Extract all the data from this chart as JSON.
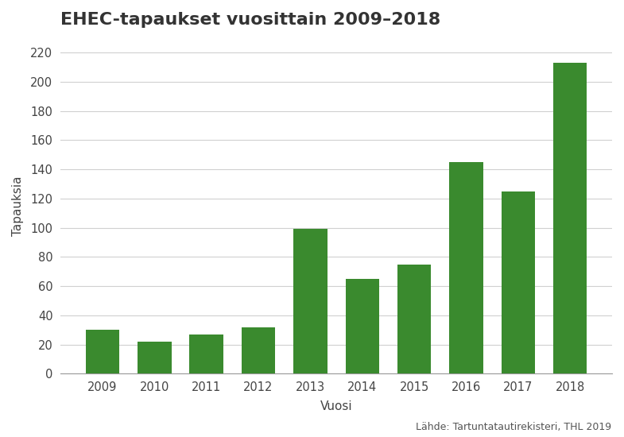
{
  "title": "EHEC-tapaukset vuosittain 2009–2018",
  "xlabel": "Vuosi",
  "ylabel": "Tapauksia",
  "source": "Lähde: Tartuntatautirekisteri, THL 2019",
  "categories": [
    "2009",
    "2010",
    "2011",
    "2012",
    "2013",
    "2014",
    "2015",
    "2016",
    "2017",
    "2018"
  ],
  "values": [
    30,
    22,
    27,
    32,
    99,
    65,
    75,
    145,
    125,
    213
  ],
  "bar_color": "#3a8a2e",
  "background_color": "#ffffff",
  "ylim": [
    0,
    230
  ],
  "yticks": [
    0,
    20,
    40,
    60,
    80,
    100,
    120,
    140,
    160,
    180,
    200,
    220
  ],
  "grid_color": "#d0d0d0",
  "title_fontsize": 16,
  "title_color": "#333333",
  "axis_label_fontsize": 11,
  "tick_fontsize": 10.5,
  "source_fontsize": 9,
  "source_color": "#555555"
}
